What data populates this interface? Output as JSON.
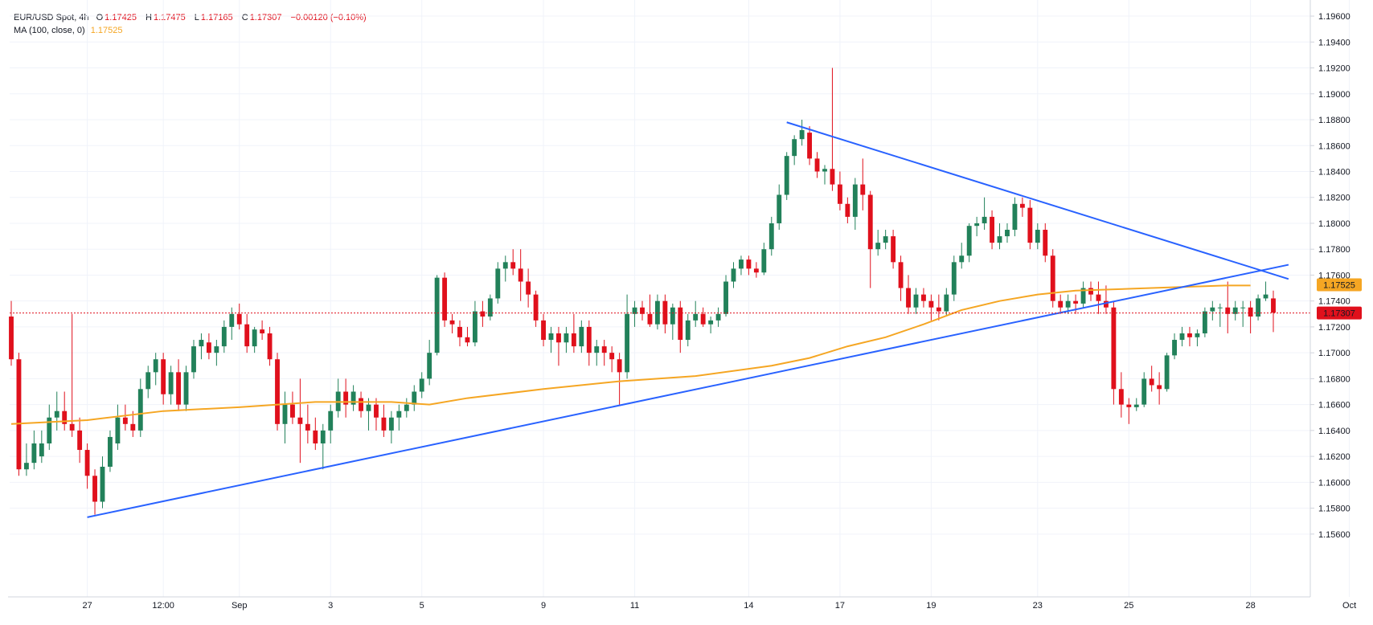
{
  "header": {
    "symbol": "EUR/USD Spot, 4h",
    "o_label": "O",
    "o_value": "1.17425",
    "h_label": "H",
    "h_value": "1.17475",
    "l_label": "L",
    "l_value": "1.17165",
    "c_label": "C",
    "c_value": "1.17307",
    "change": "−0.00120 (−0.10%)",
    "ma_label": "MA (100, close, 0)",
    "ma_value": "1.17525"
  },
  "colors": {
    "up": "#26a69a",
    "up_body": "#22815a",
    "down": "#e0101c",
    "ma": "#f5a623",
    "trendline": "#2962ff",
    "price_line": "#e0101c",
    "grid": "#f0f3fa",
    "text": "#131722"
  },
  "chart_data": {
    "type": "candlestick",
    "title": "EUR/USD Spot, 4h",
    "x_ticks": [
      "27",
      "12:00",
      "Sep",
      "3",
      "5",
      "9",
      "11",
      "14",
      "17",
      "19",
      "23",
      "25",
      "28",
      "Oct"
    ],
    "y_ticks": [
      "1.19600",
      "1.19400",
      "1.19200",
      "1.19000",
      "1.18800",
      "1.18600",
      "1.18400",
      "1.18200",
      "1.18000",
      "1.17800",
      "1.17600",
      "1.17400",
      "1.17200",
      "1.17000",
      "1.16800",
      "1.16600",
      "1.16400",
      "1.16200",
      "1.16000",
      "1.15800",
      "1.15600"
    ],
    "ylim": [
      1.1545,
      1.1965
    ],
    "grid": true,
    "last_price": "1.17307",
    "ma_last": "1.17525",
    "ohlc": [
      [
        1.1728,
        1.174,
        1.169,
        1.1695
      ],
      [
        1.1695,
        1.17,
        1.1605,
        1.161
      ],
      [
        1.161,
        1.163,
        1.1605,
        1.1615
      ],
      [
        1.1615,
        1.164,
        1.161,
        1.163
      ],
      [
        1.162,
        1.164,
        1.1615,
        1.163
      ],
      [
        1.163,
        1.166,
        1.1625,
        1.165
      ],
      [
        1.165,
        1.167,
        1.164,
        1.1655
      ],
      [
        1.1655,
        1.167,
        1.164,
        1.1645
      ],
      [
        1.1645,
        1.173,
        1.1635,
        1.164
      ],
      [
        1.164,
        1.165,
        1.1615,
        1.1625
      ],
      [
        1.1625,
        1.163,
        1.1595,
        1.1605
      ],
      [
        1.1605,
        1.161,
        1.1575,
        1.1585
      ],
      [
        1.1585,
        1.162,
        1.158,
        1.1612
      ],
      [
        1.1612,
        1.164,
        1.1608,
        1.1635
      ],
      [
        1.163,
        1.166,
        1.1625,
        1.165
      ],
      [
        1.165,
        1.166,
        1.164,
        1.1645
      ],
      [
        1.1645,
        1.1655,
        1.1635,
        1.164
      ],
      [
        1.164,
        1.168,
        1.1635,
        1.1672
      ],
      [
        1.1672,
        1.169,
        1.1665,
        1.1685
      ],
      [
        1.1685,
        1.17,
        1.1675,
        1.1695
      ],
      [
        1.1695,
        1.17,
        1.166,
        1.1668
      ],
      [
        1.1668,
        1.169,
        1.166,
        1.1685
      ],
      [
        1.1685,
        1.1695,
        1.1655,
        1.166
      ],
      [
        1.166,
        1.169,
        1.1655,
        1.1685
      ],
      [
        1.1685,
        1.171,
        1.168,
        1.1705
      ],
      [
        1.1705,
        1.1715,
        1.1695,
        1.171
      ],
      [
        1.1708,
        1.1715,
        1.1695,
        1.17
      ],
      [
        1.17,
        1.171,
        1.169,
        1.1705
      ],
      [
        1.1705,
        1.1725,
        1.17,
        1.172
      ],
      [
        1.172,
        1.1735,
        1.171,
        1.173
      ],
      [
        1.173,
        1.1738,
        1.1718,
        1.1722
      ],
      [
        1.1722,
        1.173,
        1.17,
        1.1705
      ],
      [
        1.1705,
        1.172,
        1.17,
        1.1718
      ],
      [
        1.1718,
        1.1725,
        1.171,
        1.1715
      ],
      [
        1.1715,
        1.172,
        1.169,
        1.1695
      ],
      [
        1.1695,
        1.17,
        1.164,
        1.1645
      ],
      [
        1.1645,
        1.167,
        1.163,
        1.166
      ],
      [
        1.166,
        1.167,
        1.1645,
        1.165
      ],
      [
        1.165,
        1.168,
        1.1615,
        1.1645
      ],
      [
        1.1645,
        1.166,
        1.163,
        1.164
      ],
      [
        1.164,
        1.165,
        1.1625,
        1.163
      ],
      [
        1.163,
        1.1645,
        1.161,
        1.164
      ],
      [
        1.164,
        1.166,
        1.163,
        1.1655
      ],
      [
        1.1655,
        1.168,
        1.165,
        1.167
      ],
      [
        1.167,
        1.168,
        1.165,
        1.166
      ],
      [
        1.166,
        1.1675,
        1.1655,
        1.167
      ],
      [
        1.1665,
        1.167,
        1.165,
        1.1655
      ],
      [
        1.1655,
        1.1665,
        1.164,
        1.166
      ],
      [
        1.166,
        1.1665,
        1.164,
        1.165
      ],
      [
        1.165,
        1.166,
        1.1635,
        1.164
      ],
      [
        1.164,
        1.1655,
        1.163,
        1.165
      ],
      [
        1.165,
        1.166,
        1.164,
        1.1655
      ],
      [
        1.1655,
        1.1665,
        1.165,
        1.166
      ],
      [
        1.166,
        1.1675,
        1.1655,
        1.167
      ],
      [
        1.167,
        1.1685,
        1.1665,
        1.168
      ],
      [
        1.168,
        1.171,
        1.1675,
        1.17
      ],
      [
        1.17,
        1.176,
        1.1698,
        1.1758
      ],
      [
        1.1758,
        1.1762,
        1.172,
        1.1725
      ],
      [
        1.1725,
        1.173,
        1.1715,
        1.1722
      ],
      [
        1.172,
        1.1725,
        1.1705,
        1.1712
      ],
      [
        1.1712,
        1.172,
        1.1705,
        1.1708
      ],
      [
        1.1708,
        1.174,
        1.1705,
        1.1732
      ],
      [
        1.1732,
        1.174,
        1.172,
        1.1728
      ],
      [
        1.1728,
        1.1745,
        1.1725,
        1.1742
      ],
      [
        1.1742,
        1.177,
        1.1738,
        1.1765
      ],
      [
        1.1765,
        1.1775,
        1.1755,
        1.177
      ],
      [
        1.177,
        1.178,
        1.176,
        1.1765
      ],
      [
        1.1765,
        1.178,
        1.174,
        1.1755
      ],
      [
        1.1755,
        1.1765,
        1.1735,
        1.1745
      ],
      [
        1.1745,
        1.1748,
        1.172,
        1.1725
      ],
      [
        1.1725,
        1.173,
        1.1705,
        1.171
      ],
      [
        1.171,
        1.172,
        1.17,
        1.1715
      ],
      [
        1.1715,
        1.172,
        1.169,
        1.1708
      ],
      [
        1.1708,
        1.172,
        1.17,
        1.1715
      ],
      [
        1.1715,
        1.173,
        1.17,
        1.1705
      ],
      [
        1.1705,
        1.1725,
        1.17,
        1.172
      ],
      [
        1.172,
        1.1725,
        1.169,
        1.17
      ],
      [
        1.17,
        1.171,
        1.169,
        1.1705
      ],
      [
        1.1705,
        1.171,
        1.169,
        1.17
      ],
      [
        1.17,
        1.1705,
        1.1685,
        1.1695
      ],
      [
        1.1695,
        1.17,
        1.166,
        1.1685
      ],
      [
        1.1685,
        1.1745,
        1.168,
        1.173
      ],
      [
        1.173,
        1.174,
        1.172,
        1.1735
      ],
      [
        1.1735,
        1.174,
        1.1725,
        1.173
      ],
      [
        1.173,
        1.1745,
        1.172,
        1.1722
      ],
      [
        1.1722,
        1.1745,
        1.1718,
        1.174
      ],
      [
        1.174,
        1.1745,
        1.1715,
        1.1722
      ],
      [
        1.1722,
        1.1738,
        1.171,
        1.1735
      ],
      [
        1.1735,
        1.174,
        1.17,
        1.171
      ],
      [
        1.171,
        1.173,
        1.1705,
        1.1725
      ],
      [
        1.1725,
        1.174,
        1.172,
        1.173
      ],
      [
        1.173,
        1.1735,
        1.172,
        1.1722
      ],
      [
        1.1722,
        1.1728,
        1.1715,
        1.1725
      ],
      [
        1.1725,
        1.1735,
        1.172,
        1.173
      ],
      [
        1.173,
        1.176,
        1.1728,
        1.1755
      ],
      [
        1.1755,
        1.177,
        1.175,
        1.1765
      ],
      [
        1.1765,
        1.1775,
        1.176,
        1.1772
      ],
      [
        1.1772,
        1.1775,
        1.176,
        1.1765
      ],
      [
        1.1765,
        1.177,
        1.1758,
        1.1762
      ],
      [
        1.1762,
        1.1785,
        1.176,
        1.178
      ],
      [
        1.178,
        1.1805,
        1.1775,
        1.18
      ],
      [
        1.18,
        1.183,
        1.1795,
        1.1822
      ],
      [
        1.1822,
        1.1855,
        1.1818,
        1.1852
      ],
      [
        1.1852,
        1.1868,
        1.1845,
        1.1865
      ],
      [
        1.1865,
        1.188,
        1.186,
        1.1872
      ],
      [
        1.187,
        1.1875,
        1.1845,
        1.185
      ],
      [
        1.185,
        1.1855,
        1.1835,
        1.184
      ],
      [
        1.184,
        1.1845,
        1.183,
        1.1842
      ],
      [
        1.1842,
        1.192,
        1.1825,
        1.183
      ],
      [
        1.183,
        1.184,
        1.181,
        1.1815
      ],
      [
        1.1815,
        1.182,
        1.18,
        1.1805
      ],
      [
        1.1805,
        1.1835,
        1.1795,
        1.183
      ],
      [
        1.183,
        1.185,
        1.181,
        1.1822
      ],
      [
        1.1822,
        1.1825,
        1.175,
        1.178
      ],
      [
        1.178,
        1.1795,
        1.1775,
        1.1785
      ],
      [
        1.1785,
        1.1795,
        1.178,
        1.179
      ],
      [
        1.179,
        1.1795,
        1.1765,
        1.177
      ],
      [
        1.177,
        1.1775,
        1.174,
        1.175
      ],
      [
        1.175,
        1.176,
        1.173,
        1.1735
      ],
      [
        1.1735,
        1.175,
        1.173,
        1.1745
      ],
      [
        1.1745,
        1.175,
        1.1735,
        1.174
      ],
      [
        1.174,
        1.1745,
        1.1725,
        1.1735
      ],
      [
        1.1735,
        1.1745,
        1.1725,
        1.1732
      ],
      [
        1.1732,
        1.175,
        1.1728,
        1.1745
      ],
      [
        1.1745,
        1.1775,
        1.174,
        1.177
      ],
      [
        1.177,
        1.1785,
        1.1765,
        1.1775
      ],
      [
        1.1775,
        1.18,
        1.177,
        1.1798
      ],
      [
        1.1798,
        1.1805,
        1.179,
        1.18
      ],
      [
        1.18,
        1.182,
        1.1795,
        1.1805
      ],
      [
        1.1805,
        1.181,
        1.178,
        1.1785
      ],
      [
        1.1785,
        1.18,
        1.178,
        1.179
      ],
      [
        1.179,
        1.18,
        1.1785,
        1.1795
      ],
      [
        1.1795,
        1.182,
        1.179,
        1.1815
      ],
      [
        1.1815,
        1.182,
        1.1805,
        1.1812
      ],
      [
        1.1812,
        1.1818,
        1.178,
        1.1785
      ],
      [
        1.1785,
        1.18,
        1.178,
        1.1795
      ],
      [
        1.1795,
        1.18,
        1.177,
        1.1775
      ],
      [
        1.1775,
        1.178,
        1.1735,
        1.174
      ],
      [
        1.174,
        1.1745,
        1.173,
        1.1735
      ],
      [
        1.1735,
        1.1745,
        1.173,
        1.174
      ],
      [
        1.174,
        1.1745,
        1.173,
        1.1738
      ],
      [
        1.1738,
        1.1755,
        1.1735,
        1.175
      ],
      [
        1.175,
        1.1755,
        1.174,
        1.1745
      ],
      [
        1.1745,
        1.1755,
        1.173,
        1.174
      ],
      [
        1.174,
        1.1752,
        1.173,
        1.1735
      ],
      [
        1.1735,
        1.174,
        1.166,
        1.1672
      ],
      [
        1.1672,
        1.1685,
        1.165,
        1.166
      ],
      [
        1.166,
        1.1665,
        1.1645,
        1.1658
      ],
      [
        1.1658,
        1.1665,
        1.1655,
        1.166
      ],
      [
        1.166,
        1.1685,
        1.1658,
        1.168
      ],
      [
        1.168,
        1.169,
        1.167,
        1.1675
      ],
      [
        1.1675,
        1.1685,
        1.166,
        1.1672
      ],
      [
        1.1672,
        1.17,
        1.167,
        1.1698
      ],
      [
        1.1698,
        1.1715,
        1.1695,
        1.171
      ],
      [
        1.171,
        1.172,
        1.1705,
        1.1715
      ],
      [
        1.1715,
        1.172,
        1.1705,
        1.1712
      ],
      [
        1.1712,
        1.1718,
        1.1705,
        1.1715
      ],
      [
        1.1715,
        1.1735,
        1.1712,
        1.1732
      ],
      [
        1.1732,
        1.174,
        1.1725,
        1.1735
      ],
      [
        1.1735,
        1.1738,
        1.172,
        1.1735
      ],
      [
        1.1735,
        1.1755,
        1.1715,
        1.173
      ],
      [
        1.173,
        1.174,
        1.1725,
        1.1735
      ],
      [
        1.1735,
        1.174,
        1.172,
        1.1735
      ],
      [
        1.1735,
        1.174,
        1.1715,
        1.1728
      ],
      [
        1.1728,
        1.1745,
        1.1725,
        1.1742
      ],
      [
        1.1742,
        1.1755,
        1.174,
        1.1745
      ],
      [
        1.1742,
        1.1748,
        1.1716,
        1.1731
      ]
    ],
    "ma_100": [
      [
        0,
        1.1645
      ],
      [
        10,
        1.1648
      ],
      [
        20,
        1.1655
      ],
      [
        30,
        1.1658
      ],
      [
        40,
        1.1662
      ],
      [
        50,
        1.1662
      ],
      [
        55,
        1.166
      ],
      [
        60,
        1.1665
      ],
      [
        70,
        1.1672
      ],
      [
        80,
        1.1678
      ],
      [
        90,
        1.1682
      ],
      [
        100,
        1.169
      ],
      [
        105,
        1.1696
      ],
      [
        110,
        1.1705
      ],
      [
        115,
        1.1712
      ],
      [
        120,
        1.1722
      ],
      [
        125,
        1.1733
      ],
      [
        130,
        1.174
      ],
      [
        135,
        1.1745
      ],
      [
        140,
        1.1748
      ],
      [
        150,
        1.175
      ],
      [
        160,
        1.1752
      ],
      [
        163,
        1.1752
      ]
    ],
    "trendlines": [
      {
        "from": [
          10,
          1.1573
        ],
        "to": [
          168,
          1.1768
        ]
      },
      {
        "from": [
          102,
          1.1878
        ],
        "to": [
          168,
          1.1757
        ]
      }
    ]
  }
}
